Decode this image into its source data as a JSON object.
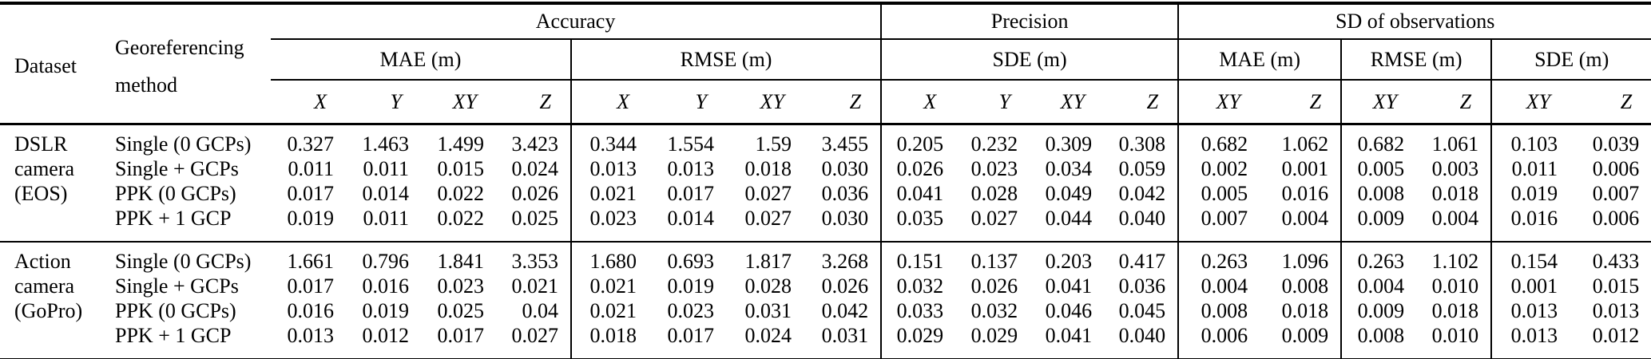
{
  "colors": {
    "text": "#000000",
    "background": "#ffffff",
    "rule": "#000000"
  },
  "table": {
    "header": {
      "dataset": "Dataset",
      "method_line1": "Georeferencing",
      "method_line2": "method",
      "groups": [
        {
          "label": "Accuracy",
          "subgroups": [
            {
              "label": "MAE (m)",
              "cols": [
                "X",
                "Y",
                "XY",
                "Z"
              ]
            },
            {
              "label": "RMSE (m)",
              "cols": [
                "X",
                "Y",
                "XY",
                "Z"
              ]
            }
          ]
        },
        {
          "label": "Precision",
          "subgroups": [
            {
              "label": "SDE (m)",
              "cols": [
                "X",
                "Y",
                "XY",
                "Z"
              ]
            }
          ]
        },
        {
          "label": "SD of observations",
          "subgroups": [
            {
              "label": "MAE (m)",
              "cols": [
                "XY",
                "Z"
              ]
            },
            {
              "label": "RMSE (m)",
              "cols": [
                "XY",
                "Z"
              ]
            },
            {
              "label": "SDE (m)",
              "cols": [
                "XY",
                "Z"
              ]
            }
          ]
        }
      ]
    },
    "blocks": [
      {
        "dataset_lines": [
          "DSLR",
          "camera",
          "(EOS)",
          ""
        ],
        "rows": [
          {
            "method": "Single (0 GCPs)",
            "values": [
              "0.327",
              "1.463",
              "1.499",
              "3.423",
              "0.344",
              "1.554",
              "1.59",
              "3.455",
              "0.205",
              "0.232",
              "0.309",
              "0.308",
              "0.682",
              "1.062",
              "0.682",
              "1.061",
              "0.103",
              "0.039"
            ]
          },
          {
            "method": "Single + GCPs",
            "values": [
              "0.011",
              "0.011",
              "0.015",
              "0.024",
              "0.013",
              "0.013",
              "0.018",
              "0.030",
              "0.026",
              "0.023",
              "0.034",
              "0.059",
              "0.002",
              "0.001",
              "0.005",
              "0.003",
              "0.011",
              "0.006"
            ]
          },
          {
            "method": "PPK (0 GCPs)",
            "values": [
              "0.017",
              "0.014",
              "0.022",
              "0.026",
              "0.021",
              "0.017",
              "0.027",
              "0.036",
              "0.041",
              "0.028",
              "0.049",
              "0.042",
              "0.005",
              "0.016",
              "0.008",
              "0.018",
              "0.019",
              "0.007"
            ]
          },
          {
            "method": "PPK + 1 GCP",
            "values": [
              "0.019",
              "0.011",
              "0.022",
              "0.025",
              "0.023",
              "0.014",
              "0.027",
              "0.030",
              "0.035",
              "0.027",
              "0.044",
              "0.040",
              "0.007",
              "0.004",
              "0.009",
              "0.004",
              "0.016",
              "0.006"
            ]
          }
        ]
      },
      {
        "dataset_lines": [
          "Action",
          "camera",
          "(GoPro)",
          ""
        ],
        "rows": [
          {
            "method": "Single (0 GCPs)",
            "values": [
              "1.661",
              "0.796",
              "1.841",
              "3.353",
              "1.680",
              "0.693",
              "1.817",
              "3.268",
              "0.151",
              "0.137",
              "0.203",
              "0.417",
              "0.263",
              "1.096",
              "0.263",
              "1.102",
              "0.154",
              "0.433"
            ]
          },
          {
            "method": "Single + GCPs",
            "values": [
              "0.017",
              "0.016",
              "0.023",
              "0.021",
              "0.021",
              "0.019",
              "0.028",
              "0.026",
              "0.032",
              "0.026",
              "0.041",
              "0.036",
              "0.004",
              "0.008",
              "0.004",
              "0.010",
              "0.001",
              "0.015"
            ]
          },
          {
            "method": "PPK (0 GCPs)",
            "values": [
              "0.016",
              "0.019",
              "0.025",
              "0.04",
              "0.021",
              "0.023",
              "0.031",
              "0.042",
              "0.033",
              "0.032",
              "0.046",
              "0.045",
              "0.008",
              "0.018",
              "0.009",
              "0.018",
              "0.013",
              "0.013"
            ]
          },
          {
            "method": "PPK + 1 GCP",
            "values": [
              "0.013",
              "0.012",
              "0.017",
              "0.027",
              "0.018",
              "0.017",
              "0.024",
              "0.031",
              "0.029",
              "0.029",
              "0.041",
              "0.040",
              "0.006",
              "0.009",
              "0.008",
              "0.010",
              "0.013",
              "0.012"
            ]
          }
        ]
      }
    ]
  }
}
